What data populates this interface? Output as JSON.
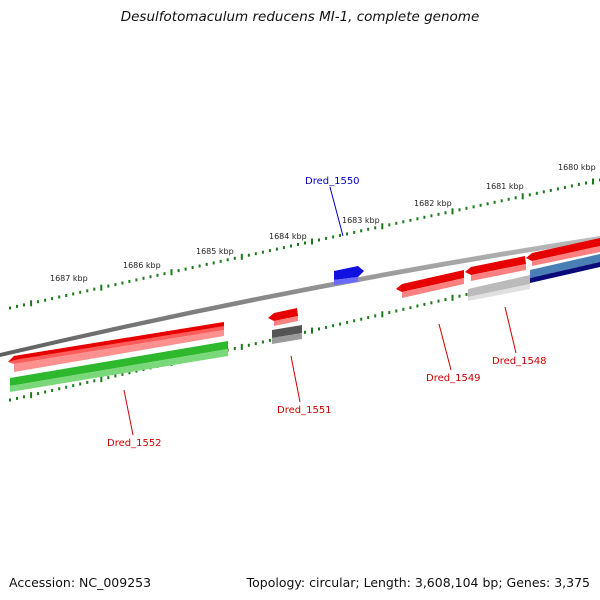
{
  "title": "Desulfotomaculum reducens MI-1, complete genome",
  "accession": "Accession: NC_009253",
  "summary": "Topology: circular; Length: 3,608,104 bp; Genes: 3,375",
  "colors": {
    "backbone": "#888888",
    "tick": "#1a7a1a",
    "red_gene": "#e60000",
    "green_gene": "#2db82d",
    "blue_gene": "#1010e0",
    "dark_gray_gene": "#555555",
    "light_gray_gene": "#bbbbbb",
    "steel_blue_gene": "#4a7fb5",
    "navy_gene": "#0a0a7a",
    "label_red": "#cc0000",
    "label_blue": "#0000cc"
  },
  "scale_labels": [
    {
      "kbp": 1680,
      "text": "1680 kbp"
    },
    {
      "kbp": 1681,
      "text": "1681 kbp"
    },
    {
      "kbp": 1682,
      "text": "1682 kbp"
    },
    {
      "kbp": 1683,
      "text": "1683 kbp"
    },
    {
      "kbp": 1684,
      "text": "1684 kbp"
    },
    {
      "kbp": 1685,
      "text": "1685 kbp"
    },
    {
      "kbp": 1686,
      "text": "1686 kbp"
    },
    {
      "kbp": 1687,
      "text": "1687 kbp"
    }
  ],
  "gene_labels": [
    {
      "id": "Dred_1550",
      "text": "Dred_1550",
      "color": "blue_gene"
    },
    {
      "id": "Dred_1551",
      "text": "Dred_1551",
      "color": "red_gene"
    },
    {
      "id": "Dred_1552",
      "text": "Dred_1552",
      "color": "red_gene"
    },
    {
      "id": "Dred_1549",
      "text": "Dred_1549",
      "color": "red_gene"
    },
    {
      "id": "Dred_1548",
      "text": "Dred_1548",
      "color": "red_gene"
    }
  ]
}
